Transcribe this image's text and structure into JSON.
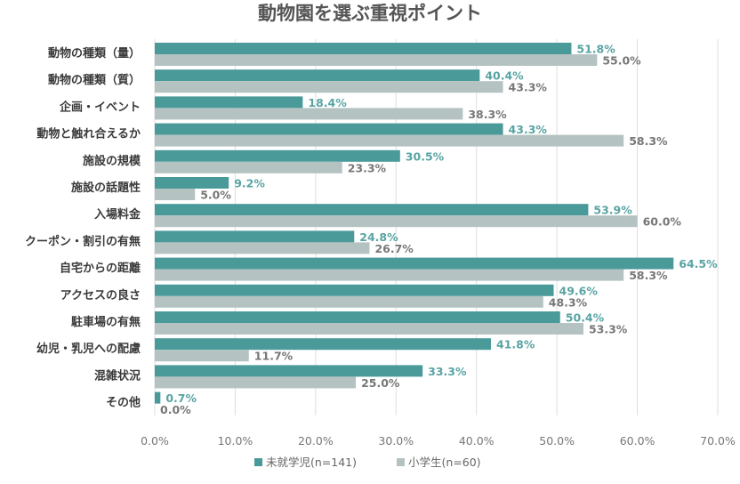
{
  "chart_data": {
    "type": "bar",
    "orientation": "horizontal",
    "title": "動物園を選ぶ重視ポイント",
    "categories": [
      "動物の種類（量）",
      "動物の種類（質）",
      "企画・イベント",
      "動物と触れ合えるか",
      "施設の規模",
      "施設の話題性",
      "入場料金",
      "クーポン・割引の有無",
      "自宅からの距離",
      "アクセスの良さ",
      "駐車場の有無",
      "幼児・乳児への配慮",
      "混雑状況",
      "その他"
    ],
    "series": [
      {
        "name": "未就学児(n=141)",
        "color": "#4a9a9a",
        "label_color": "#5aa3a3",
        "values": [
          51.8,
          40.4,
          18.4,
          43.3,
          30.5,
          9.2,
          53.9,
          24.8,
          64.5,
          49.6,
          50.4,
          41.8,
          33.3,
          0.7
        ],
        "labels": [
          "51.8%",
          "40.4%",
          "18.4%",
          "43.3%",
          "30.5%",
          "9.2%",
          "53.9%",
          "24.8%",
          "64.5%",
          "49.6%",
          "50.4%",
          "41.8%",
          "33.3%",
          "0.7%"
        ]
      },
      {
        "name": "小学生(n=60)",
        "color": "#b4c3c1",
        "label_color": "#777777",
        "values": [
          55.0,
          43.3,
          38.3,
          58.3,
          23.3,
          5.0,
          60.0,
          26.7,
          58.3,
          48.3,
          53.3,
          11.7,
          25.0,
          0.0
        ],
        "labels": [
          "55.0%",
          "43.3%",
          "38.3%",
          "58.3%",
          "23.3%",
          "5.0%",
          "60.0%",
          "26.7%",
          "58.3%",
          "48.3%",
          "53.3%",
          "11.7%",
          "25.0%",
          "0.0%"
        ]
      }
    ],
    "xlim": [
      0,
      70
    ],
    "xticks": [
      0,
      10,
      20,
      30,
      40,
      50,
      60,
      70
    ],
    "xtick_labels": [
      "0.0%",
      "10.0%",
      "20.0%",
      "30.0%",
      "40.0%",
      "50.0%",
      "60.0%",
      "70.0%"
    ],
    "grid": true,
    "legend_position": "bottom"
  }
}
